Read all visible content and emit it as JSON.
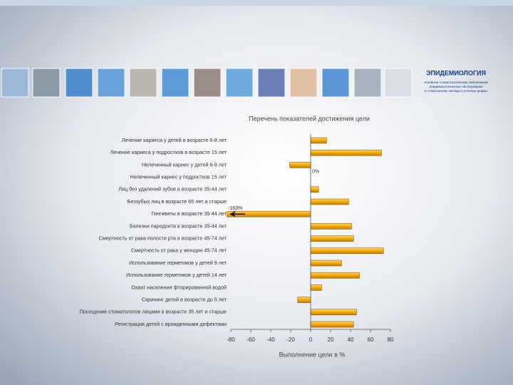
{
  "header": {
    "title": "ЭПИДЕМИОЛОГИЯ",
    "lines": [
      "основные стоматологические заболевания",
      "Эпидемиологическое обследование",
      "в стоматологии, методы и учетные формы"
    ]
  },
  "chart_data": {
    "type": "bar",
    "orientation": "horizontal",
    "title": "Перечень показателей достижения цели",
    "xlabel": "Выполнение цели в %",
    "categories": [
      "Лечение кариеса у детей в возрасте 6-8 лет",
      "Лечение кариеса у подростков в возрасте 15 лет",
      "Нелеченный кариес у детей 6-9 лет",
      "Нелеченный кариес у подростков 15 лет",
      "Лиц без удалений зубов в возрасте 35-44 лет",
      "Беззубых лиц в возрасте 65 лет и старше",
      "Гингивиты в возрасте 35-44 лет",
      "Болезни пародонта в возрасте 35-44 лет",
      "Смертность от рака полости рта в возрасте 45-74 лет",
      "Смертность от рака у женщин 45-74 лет",
      "Использование герметиков у детей 9 лет",
      "Использование герметиков у детей 14 лет",
      "Охват населения фторированной водой",
      "Скрининг детей в возрасте до 5 лет",
      "Посещение стоматологов лицами в возрасте 35 лет и старше",
      "Регистрация детей с врожденными дефектами"
    ],
    "values": [
      16,
      71,
      -21,
      0,
      8,
      38,
      -163,
      41,
      43,
      73,
      31,
      49,
      11,
      -13,
      46,
      43
    ],
    "value_labels": [
      null,
      null,
      null,
      "0%",
      null,
      null,
      "-163%",
      null,
      null,
      null,
      null,
      null,
      null,
      null,
      null,
      null
    ],
    "color": "#f5a800",
    "xlim": [
      -80,
      80
    ],
    "xticks": [
      -80,
      -60,
      -40,
      -20,
      0,
      20,
      40,
      60,
      80
    ]
  }
}
